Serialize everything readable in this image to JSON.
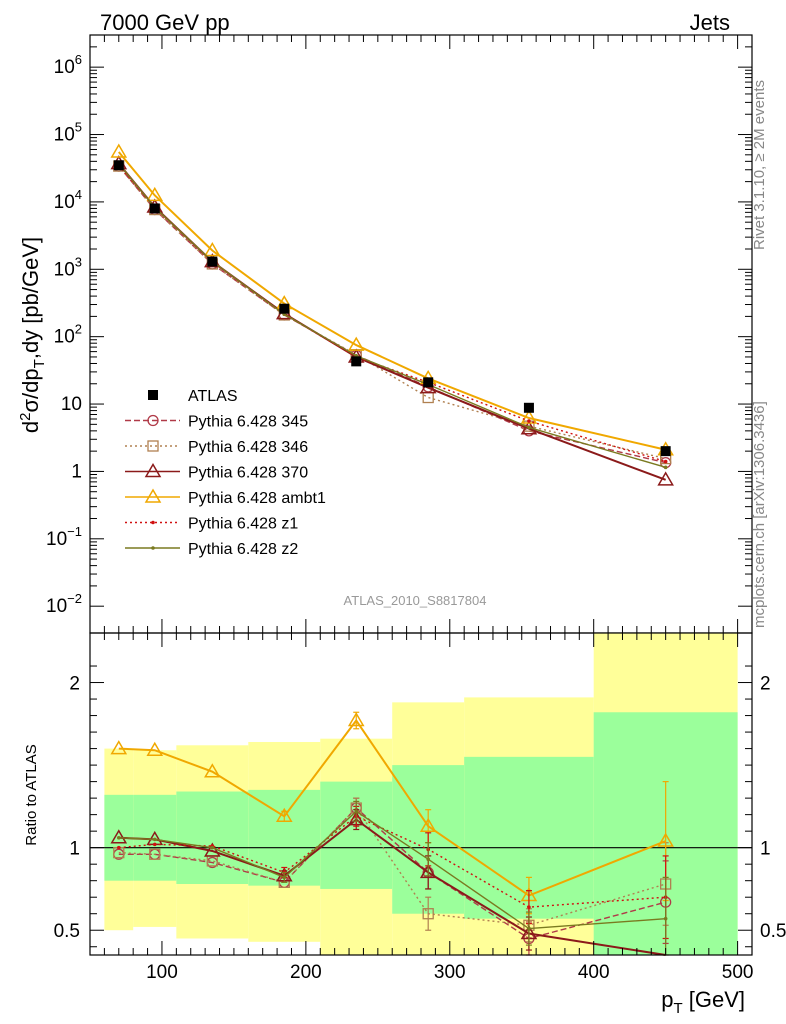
{
  "header": {
    "left": "7000 GeV pp",
    "right": "Jets"
  },
  "side_text": {
    "top": "Rivet 3.1.10, ≥ 2M events",
    "bottom": "mcplots.cern.ch [arXiv:1306.3436]"
  },
  "analysis_label": "ATLAS_2010_S8817804",
  "colors": {
    "data": "#000000",
    "p345": "#b03a48",
    "p346": "#b08050",
    "p370": "#8b1a1a",
    "ambt1": "#f0a800",
    "z1": "#d01010",
    "z2": "#7a7a20",
    "band_green": "#9bff9b",
    "band_yellow": "#ffff99"
  },
  "chart_data": [
    {
      "type": "line",
      "panel": "main",
      "ylabel_parts": {
        "d": "d",
        "sup2": "2",
        "sigma_dp": "σ/dp",
        "subT": "T",
        "rest": ",dy [pb/GeV]"
      },
      "yscale": "log",
      "ylim": [
        0.004,
        3000000
      ],
      "xlim": [
        50,
        510
      ],
      "y_ticks": [
        {
          "value": 0.01,
          "base": "10",
          "exp": "−2"
        },
        {
          "value": 0.1,
          "base": "10",
          "exp": "−1"
        },
        {
          "value": 1,
          "base": "1",
          "exp": ""
        },
        {
          "value": 10,
          "base": "10",
          "exp": ""
        },
        {
          "value": 100,
          "base": "10",
          "exp": "2"
        },
        {
          "value": 1000,
          "base": "10",
          "exp": "3"
        },
        {
          "value": 10000,
          "base": "10",
          "exp": "4"
        },
        {
          "value": 100000,
          "base": "10",
          "exp": "5"
        },
        {
          "value": 1000000,
          "base": "10",
          "exp": "6"
        }
      ],
      "legend_position": "middle-left",
      "legend": [
        {
          "key": "data",
          "label": "ATLAS"
        },
        {
          "key": "p345",
          "label": "Pythia 6.428 345"
        },
        {
          "key": "p346",
          "label": "Pythia 6.428 346"
        },
        {
          "key": "p370",
          "label": "Pythia 6.428 370"
        },
        {
          "key": "ambt1",
          "label": "Pythia 6.428 ambt1"
        },
        {
          "key": "z1",
          "label": "Pythia 6.428 z1"
        },
        {
          "key": "z2",
          "label": "Pythia 6.428 z2"
        }
      ],
      "data": {
        "name": "ATLAS",
        "x": [
          70,
          95,
          135,
          185,
          235,
          285,
          355,
          450
        ],
        "y": [
          35000,
          8000,
          1300,
          260,
          43,
          21,
          8.8,
          2.0
        ]
      },
      "series": [
        {
          "key": "p345",
          "style": "dashed",
          "marker": "circle",
          "y": [
            34000,
            7700,
            1200,
            210,
            53,
            18,
            4.0,
            1.35
          ]
        },
        {
          "key": "p346",
          "style": "dotted",
          "marker": "square",
          "y": [
            34000,
            7700,
            1200,
            210,
            54,
            12.5,
            4.7,
            1.55
          ]
        },
        {
          "key": "p370",
          "style": "solid",
          "marker": "triangle",
          "y": [
            37000,
            8400,
            1300,
            220,
            50,
            17.5,
            4.3,
            0.75
          ]
        },
        {
          "key": "ambt1",
          "style": "solid",
          "marker": "triangle",
          "y": [
            55000,
            12500,
            1900,
            310,
            75,
            24,
            6.2,
            2.1
          ]
        },
        {
          "key": "z1",
          "style": "dotted",
          "marker": "dot",
          "y": [
            35000,
            8200,
            1300,
            215,
            50,
            21,
            5.6,
            1.4
          ]
        },
        {
          "key": "z2",
          "style": "solid",
          "marker": "dot",
          "y": [
            37000,
            8300,
            1310,
            215,
            52,
            19.5,
            4.5,
            1.15
          ]
        }
      ]
    },
    {
      "type": "line",
      "panel": "ratio",
      "ylabel": "Ratio to ATLAS",
      "xlabel_parts": {
        "p": "p",
        "subT": "T",
        "rest": " [GeV]"
      },
      "ylim": [
        0.35,
        2.3
      ],
      "xlim": [
        50,
        510
      ],
      "x_ticks": [
        100,
        200,
        300,
        400,
        500
      ],
      "y_ticks": [
        0.5,
        1,
        2
      ],
      "reference": 1,
      "bands": [
        {
          "x0": 60,
          "x1": 80,
          "green": [
            0.8,
            1.32
          ],
          "yellow": [
            0.5,
            1.6
          ]
        },
        {
          "x0": 80,
          "x1": 110,
          "green": [
            0.8,
            1.32
          ],
          "yellow": [
            0.52,
            1.59
          ]
        },
        {
          "x0": 110,
          "x1": 160,
          "green": [
            0.78,
            1.34
          ],
          "yellow": [
            0.45,
            1.62
          ]
        },
        {
          "x0": 160,
          "x1": 210,
          "green": [
            0.77,
            1.35
          ],
          "yellow": [
            0.43,
            1.64
          ]
        },
        {
          "x0": 210,
          "x1": 260,
          "green": [
            0.75,
            1.4
          ],
          "yellow": [
            0.3,
            1.66
          ]
        },
        {
          "x0": 260,
          "x1": 310,
          "green": [
            0.6,
            1.5
          ],
          "yellow": [
            0.3,
            1.88
          ]
        },
        {
          "x0": 310,
          "x1": 400,
          "green": [
            0.57,
            1.55
          ],
          "yellow": [
            0.3,
            1.91
          ]
        },
        {
          "x0": 400,
          "x1": 500,
          "green": [
            0.3,
            1.82
          ],
          "yellow": [
            0.3,
            2.3
          ]
        }
      ],
      "series": [
        {
          "key": "p345",
          "style": "dashed",
          "marker": "circle",
          "y": [
            0.96,
            0.96,
            0.91,
            0.79,
            1.24,
            0.85,
            0.45,
            0.67
          ]
        },
        {
          "key": "p346",
          "style": "dotted",
          "marker": "square",
          "y": [
            0.97,
            0.96,
            0.92,
            0.79,
            1.24,
            0.6,
            0.53,
            0.78
          ]
        },
        {
          "key": "p370",
          "style": "solid",
          "marker": "triangle",
          "y": [
            1.06,
            1.05,
            0.98,
            0.83,
            1.17,
            0.85,
            0.48,
            0.3
          ]
        },
        {
          "key": "ambt1",
          "style": "solid",
          "marker": "triangle",
          "y": [
            1.6,
            1.59,
            1.46,
            1.19,
            1.77,
            1.13,
            0.71,
            1.04
          ]
        },
        {
          "key": "z1",
          "style": "dotted",
          "marker": "dot",
          "y": [
            1.0,
            1.02,
            1.01,
            0.85,
            1.19,
            0.99,
            0.64,
            0.7
          ]
        },
        {
          "key": "z2",
          "style": "solid",
          "marker": "dot",
          "y": [
            1.06,
            1.05,
            1.0,
            0.82,
            1.22,
            0.93,
            0.51,
            0.57
          ]
        }
      ],
      "errors": {
        "p345": [
          0,
          0,
          0,
          0,
          0.06,
          0.1,
          0.1,
          0.25
        ],
        "p346": [
          0,
          0,
          0,
          0,
          0.06,
          0.1,
          0.1,
          0.25
        ],
        "p370": [
          0,
          0,
          0,
          0.03,
          0.06,
          0.1,
          0.1,
          0.2
        ],
        "ambt1": [
          0,
          0,
          0,
          0.03,
          0.05,
          0.1,
          0.11,
          0.36
        ],
        "z1": [
          0,
          0,
          0,
          0.03,
          0.06,
          0.1,
          0.1,
          0.25
        ],
        "z2": [
          0,
          0,
          0,
          0.03,
          0.06,
          0.1,
          0.1,
          0.25
        ]
      }
    }
  ]
}
